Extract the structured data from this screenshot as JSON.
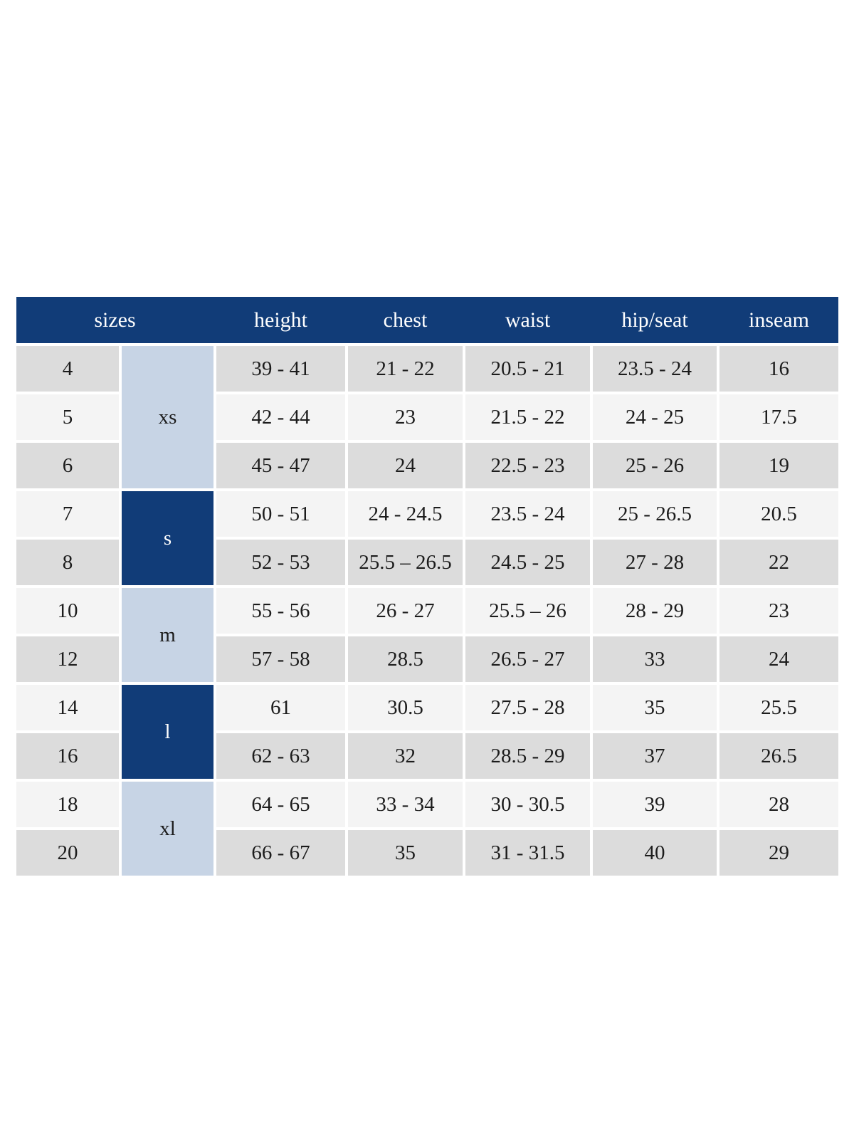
{
  "colors": {
    "header_bg": "#113c78",
    "header_text": "#ffffff",
    "group_light_bg": "#c7d4e5",
    "group_dark_bg": "#113c78",
    "row_dark": "#dcdcdc",
    "row_light": "#f4f4f4",
    "cell_text": "#1c1c1c",
    "page_bg": "#ffffff"
  },
  "table": {
    "header": {
      "sizes": "sizes",
      "height": "height",
      "chest": "chest",
      "waist": "waist",
      "hip_seat": "hip/seat",
      "inseam": "inseam"
    },
    "groups": [
      {
        "label": "xs"
      },
      {
        "label": "s"
      },
      {
        "label": "m"
      },
      {
        "label": "l"
      },
      {
        "label": "xl"
      }
    ],
    "rows": [
      {
        "size": "4",
        "height": "39 - 41",
        "chest": "21 - 22",
        "waist": "20.5 - 21",
        "hip_seat": "23.5 - 24",
        "inseam": "16"
      },
      {
        "size": "5",
        "height": "42 - 44",
        "chest": "23",
        "waist": "21.5 - 22",
        "hip_seat": "24 - 25",
        "inseam": "17.5"
      },
      {
        "size": "6",
        "height": "45 - 47",
        "chest": "24",
        "waist": "22.5 - 23",
        "hip_seat": "25 - 26",
        "inseam": "19"
      },
      {
        "size": "7",
        "height": "50 - 51",
        "chest": "24 - 24.5",
        "waist": "23.5 - 24",
        "hip_seat": "25 - 26.5",
        "inseam": "20.5"
      },
      {
        "size": "8",
        "height": "52 - 53",
        "chest": "25.5 – 26.5",
        "waist": "24.5 - 25",
        "hip_seat": "27 - 28",
        "inseam": "22"
      },
      {
        "size": "10",
        "height": "55 - 56",
        "chest": "26 - 27",
        "waist": "25.5 – 26",
        "hip_seat": "28 - 29",
        "inseam": "23"
      },
      {
        "size": "12",
        "height": "57 - 58",
        "chest": "28.5",
        "waist": "26.5 - 27",
        "hip_seat": "33",
        "inseam": "24"
      },
      {
        "size": "14",
        "height": "61",
        "chest": "30.5",
        "waist": "27.5 - 28",
        "hip_seat": "35",
        "inseam": "25.5"
      },
      {
        "size": "16",
        "height": "62 - 63",
        "chest": "32",
        "waist": "28.5 - 29",
        "hip_seat": "37",
        "inseam": "26.5"
      },
      {
        "size": "18",
        "height": "64 - 65",
        "chest": "33 - 34",
        "waist": "30 - 30.5",
        "hip_seat": "39",
        "inseam": "28"
      },
      {
        "size": "20",
        "height": "66 - 67",
        "chest": "35",
        "waist": "31 - 31.5",
        "hip_seat": "40",
        "inseam": "29"
      }
    ]
  }
}
